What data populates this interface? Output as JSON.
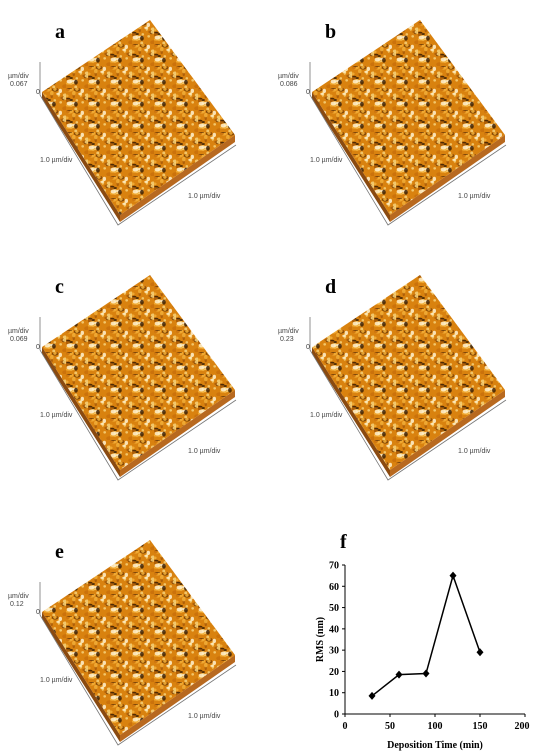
{
  "panels": [
    {
      "label": "a",
      "z_unit": "µm/div",
      "z_max": "0.067",
      "z_zero": "0",
      "y_axis": "1.0 µm/div",
      "x_axis": "1.0 µm/div"
    },
    {
      "label": "b",
      "z_unit": "µm/div",
      "z_max": "0.086",
      "z_zero": "0",
      "y_axis": "1.0 µm/div",
      "x_axis": "1.0 µm/div"
    },
    {
      "label": "c",
      "z_unit": "µm/div",
      "z_max": "0.069",
      "z_zero": "0",
      "y_axis": "1.0 µm/div",
      "x_axis": "1.0 µm/div"
    },
    {
      "label": "d",
      "z_unit": "µm/div",
      "z_max": "0.23",
      "z_zero": "0",
      "y_axis": "1.0 µm/div",
      "x_axis": "1.0 µm/div"
    },
    {
      "label": "e",
      "z_unit": "µm/div",
      "z_max": "0.12",
      "z_zero": "0",
      "y_axis": "1.0 µm/div",
      "x_axis": "1.0 µm/div"
    }
  ],
  "chart_data": {
    "type": "line",
    "panel_label": "f",
    "x_label": "Deposition Time (min)",
    "y_label": "RMS (nm)",
    "x": [
      30,
      60,
      90,
      120,
      150
    ],
    "values": [
      8.5,
      18.5,
      19,
      65,
      29
    ],
    "color": "#000000",
    "xlim": [
      0,
      200
    ],
    "xticks": [
      0,
      50,
      100,
      150,
      200
    ],
    "ylim": [
      0,
      70
    ],
    "yticks": [
      0,
      10,
      20,
      30,
      40,
      50,
      60,
      70
    ]
  }
}
